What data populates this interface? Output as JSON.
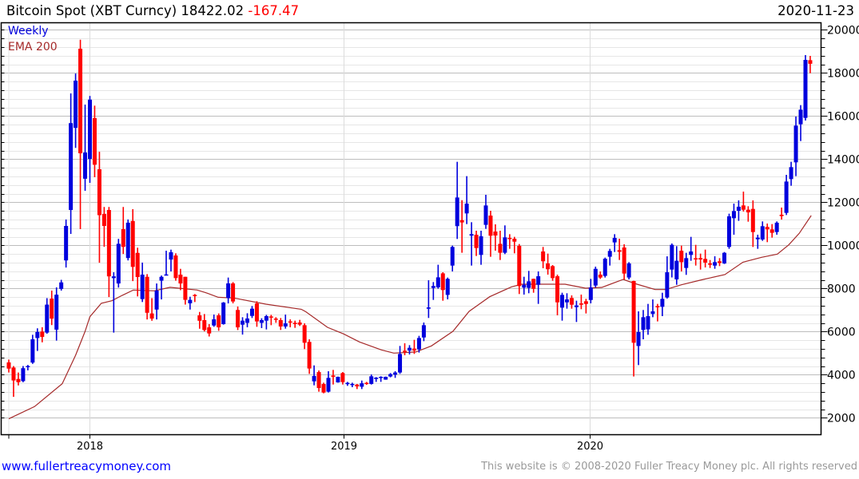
{
  "header": {
    "title": "Bitcoin Spot (XBT Curncy)",
    "last": "18422.02",
    "change": "-167.47",
    "date": "2020-11-23"
  },
  "footer": {
    "link": "www.fullertreacymoney.com",
    "copyright": "This website is © 2008-2020 Fuller Treacy Money plc. All rights reserved"
  },
  "colors": {
    "up": "#0000dd",
    "down": "#ff0000",
    "ema": "#a52a2a",
    "grid_major": "#bdbdbd",
    "grid_minor": "#e6e6e6"
  },
  "chart_data": {
    "type": "candlestick",
    "title": "Bitcoin Spot (XBT Curncy)",
    "frequency_label": "Weekly",
    "overlay_label": "EMA 200",
    "start_week": "2017-09-04",
    "ylim": [
      1500,
      20000
    ],
    "yticks": [
      2000,
      4000,
      6000,
      8000,
      10000,
      12000,
      14000,
      16000,
      18000,
      20000
    ],
    "xticks": [
      {
        "label": "2018",
        "week": 17
      },
      {
        "label": "2019",
        "week": 70.2
      },
      {
        "label": "2020",
        "week": 121.8
      }
    ],
    "grid": true,
    "ohlc": [
      [
        4570,
        4700,
        4100,
        4280
      ],
      [
        4330,
        4400,
        2970,
        3730
      ],
      [
        3800,
        4100,
        3500,
        3650
      ],
      [
        3700,
        4400,
        3650,
        4300
      ],
      [
        4350,
        4450,
        4200,
        4400
      ],
      [
        4560,
        5850,
        4500,
        5640
      ],
      [
        5700,
        6150,
        5100,
        5980
      ],
      [
        6000,
        6200,
        5500,
        5750
      ],
      [
        5950,
        7550,
        5900,
        7250
      ],
      [
        7530,
        7900,
        6300,
        6600
      ],
      [
        6090,
        8050,
        5580,
        7710
      ],
      [
        7980,
        8400,
        7900,
        8280
      ],
      [
        9300,
        11200,
        8970,
        10900
      ],
      [
        11640,
        17050,
        10530,
        15670
      ],
      [
        15450,
        17970,
        14520,
        17640
      ],
      [
        19120,
        19540,
        10750,
        14270
      ],
      [
        13090,
        16530,
        12530,
        14310
      ],
      [
        14010,
        16930,
        12900,
        16760
      ],
      [
        15900,
        16480,
        13160,
        13740
      ],
      [
        13530,
        14340,
        9190,
        11400
      ],
      [
        11460,
        11780,
        9930,
        10900
      ],
      [
        11640,
        11780,
        7600,
        8560
      ],
      [
        8480,
        8750,
        5950,
        8560
      ],
      [
        8230,
        10300,
        8040,
        10070
      ],
      [
        10750,
        11780,
        9600,
        9930
      ],
      [
        9410,
        11200,
        9300,
        11050
      ],
      [
        11130,
        11680,
        8340,
        9000
      ],
      [
        9650,
        9890,
        7630,
        8530
      ],
      [
        7505,
        9200,
        7370,
        8640
      ],
      [
        8540,
        8665,
        6560,
        6870
      ],
      [
        6840,
        7550,
        6500,
        6600
      ],
      [
        7020,
        8230,
        6560,
        7900
      ],
      [
        8360,
        8600,
        7490,
        8540
      ],
      [
        8600,
        9750,
        8600,
        8650
      ],
      [
        9340,
        9800,
        8790,
        9680
      ],
      [
        9530,
        9630,
        8360,
        8480
      ],
      [
        8640,
        8910,
        7920,
        8230
      ],
      [
        8540,
        8540,
        7250,
        7470
      ],
      [
        7310,
        7615,
        7020,
        7470
      ],
      [
        7700,
        7740,
        7370,
        7660
      ],
      [
        6750,
        6910,
        6130,
        6500
      ],
      [
        6530,
        6813,
        6010,
        6070
      ],
      [
        6196,
        6345,
        5770,
        5912
      ],
      [
        6280,
        6790,
        6220,
        6567
      ],
      [
        6750,
        6840,
        6035,
        6196
      ],
      [
        6344,
        7369,
        6320,
        7344
      ],
      [
        7555,
        8505,
        7305,
        8235
      ],
      [
        8233,
        8295,
        7308,
        7394
      ],
      [
        7000,
        7160,
        6070,
        6196
      ],
      [
        6320,
        6665,
        5860,
        6505
      ],
      [
        6405,
        6850,
        6197,
        6605
      ],
      [
        6725,
        7184,
        6628,
        7060
      ],
      [
        7305,
        7405,
        6220,
        6470
      ],
      [
        6405,
        6616,
        6160,
        6530
      ],
      [
        6505,
        6776,
        6098,
        6715
      ],
      [
        6700,
        6776,
        6295,
        6660
      ],
      [
        6600,
        6665,
        6406,
        6560
      ],
      [
        6530,
        6628,
        6073,
        6235
      ],
      [
        6235,
        6789,
        6135,
        6380
      ],
      [
        6470,
        6567,
        6197,
        6430
      ],
      [
        6405,
        6505,
        6172,
        6345
      ],
      [
        6420,
        6542,
        6258,
        6320
      ],
      [
        6295,
        6381,
        5185,
        5480
      ],
      [
        5520,
        5641,
        4035,
        4285
      ],
      [
        3690,
        4430,
        3505,
        3940
      ],
      [
        4120,
        4196,
        3210,
        3380
      ],
      [
        3565,
        3628,
        3135,
        3170
      ],
      [
        3210,
        4159,
        3172,
        3850
      ],
      [
        3960,
        4221,
        3542,
        3900
      ],
      [
        3640,
        3912,
        3628,
        3900
      ],
      [
        4075,
        4122,
        3542,
        3655
      ],
      [
        3560,
        3665,
        3480,
        3620
      ],
      [
        3520,
        3628,
        3418,
        3570
      ],
      [
        3540,
        3567,
        3332,
        3455
      ],
      [
        3440,
        3727,
        3332,
        3600
      ],
      [
        3620,
        3665,
        3530,
        3590
      ],
      [
        3570,
        4011,
        3542,
        3925
      ],
      [
        3800,
        3887,
        3665,
        3860
      ],
      [
        3850,
        3925,
        3665,
        3900
      ],
      [
        3770,
        3912,
        3764,
        3900
      ],
      [
        3915,
        4073,
        3876,
        4025
      ],
      [
        4000,
        4159,
        3851,
        4100
      ],
      [
        4100,
        5332,
        4036,
        4960
      ],
      [
        5110,
        5456,
        4900,
        5060
      ],
      [
        5120,
        5369,
        4937,
        5245
      ],
      [
        5210,
        5616,
        4962,
        5120
      ],
      [
        5170,
        5801,
        5024,
        5700
      ],
      [
        5725,
        6419,
        5554,
        6295
      ],
      [
        7060,
        8380,
        6630,
        7120
      ],
      [
        8025,
        8295,
        7468,
        8110
      ],
      [
        8050,
        9100,
        7987,
        8515
      ],
      [
        8700,
        8752,
        7430,
        7925
      ],
      [
        7700,
        8505,
        7493,
        8445
      ],
      [
        9060,
        9986,
        8789,
        9925
      ],
      [
        10890,
        13875,
        10295,
        12220
      ],
      [
        11170,
        12095,
        9655,
        11060
      ],
      [
        11480,
        13210,
        10985,
        11935
      ],
      [
        10450,
        11073,
        9060,
        10520
      ],
      [
        10490,
        10678,
        9505,
        9875
      ],
      [
        9555,
        10678,
        9097,
        10420
      ],
      [
        10950,
        12345,
        10764,
        11850
      ],
      [
        11380,
        11604,
        9468,
        10445
      ],
      [
        10640,
        10974,
        9752,
        10455
      ],
      [
        10070,
        10678,
        9320,
        9655
      ],
      [
        9655,
        10925,
        9592,
        10370
      ],
      [
        10345,
        10517,
        9838,
        10295
      ],
      [
        10305,
        10394,
        9629,
        10170
      ],
      [
        9975,
        10061,
        7740,
        8110
      ],
      [
        8035,
        8542,
        7715,
        8170
      ],
      [
        8025,
        8814,
        7777,
        8330
      ],
      [
        8445,
        8456,
        7801,
        7985
      ],
      [
        8170,
        8789,
        7283,
        8565
      ],
      [
        9715,
        9925,
        8937,
        9260
      ],
      [
        9160,
        9616,
        8641,
        8890
      ],
      [
        9035,
        9085,
        8357,
        8480
      ],
      [
        8565,
        8641,
        6752,
        7355
      ],
      [
        7110,
        7801,
        6505,
        7700
      ],
      [
        7355,
        7777,
        7061,
        7490
      ],
      [
        7555,
        7678,
        7061,
        7245
      ],
      [
        7135,
        7431,
        6443,
        7210
      ],
      [
        7305,
        7715,
        7036,
        7245
      ],
      [
        7405,
        7517,
        6838,
        7280
      ],
      [
        7465,
        8443,
        7308,
        8045
      ],
      [
        8135,
        9011,
        8048,
        8910
      ],
      [
        8640,
        8789,
        8443,
        8505
      ],
      [
        8580,
        9431,
        8505,
        9380
      ],
      [
        9470,
        9838,
        9061,
        9740
      ],
      [
        10135,
        10517,
        9690,
        10345
      ],
      [
        9775,
        10308,
        9320,
        9700
      ],
      [
        9900,
        10048,
        8419,
        8690
      ],
      [
        8505,
        9221,
        8419,
        9160
      ],
      [
        8345,
        8357,
        3915,
        5480
      ],
      [
        5330,
        6937,
        4443,
        5975
      ],
      [
        6075,
        7000,
        5640,
        6665
      ],
      [
        6100,
        7283,
        5850,
        6715
      ],
      [
        6815,
        7490,
        6665,
        6937
      ],
      [
        7180,
        7283,
        6470,
        7130
      ],
      [
        7147,
        7800,
        6715,
        7517
      ],
      [
        7580,
        9490,
        7530,
        8750
      ],
      [
        8875,
        10085,
        8510,
        10023
      ],
      [
        8420,
        9962,
        8170,
        9283
      ],
      [
        9750,
        9986,
        8790,
        9220
      ],
      [
        8950,
        9653,
        8630,
        9406
      ],
      [
        9555,
        10393,
        9283,
        9715
      ],
      [
        9400,
        10023,
        9061,
        9350
      ],
      [
        9406,
        9616,
        8875,
        9345
      ],
      [
        9370,
        9801,
        8974,
        9200
      ],
      [
        9160,
        9319,
        8949,
        9100
      ],
      [
        9060,
        9492,
        8912,
        9220
      ],
      [
        9258,
        9406,
        9036,
        9184
      ],
      [
        9160,
        9690,
        9135,
        9653
      ],
      [
        9925,
        11469,
        9838,
        11345
      ],
      [
        11258,
        11937,
        10493,
        11590
      ],
      [
        11604,
        12085,
        11135,
        11790
      ],
      [
        11850,
        12493,
        11567,
        11653
      ],
      [
        11653,
        11814,
        11097,
        11530
      ],
      [
        11690,
        12085,
        9924,
        10616
      ],
      [
        10283,
        10493,
        9838,
        10357
      ],
      [
        10270,
        11110,
        10208,
        10887
      ],
      [
        10850,
        11011,
        10147,
        10740
      ],
      [
        10740,
        10986,
        10357,
        10580
      ],
      [
        10616,
        11110,
        10493,
        11050
      ],
      [
        11420,
        11752,
        11196,
        11357
      ],
      [
        11505,
        13270,
        11406,
        12960
      ],
      [
        13073,
        13875,
        12764,
        13628
      ],
      [
        13850,
        15974,
        13209,
        15555
      ],
      [
        15616,
        16505,
        14838,
        16295
      ],
      [
        15912,
        18826,
        15789,
        18604
      ],
      [
        18590,
        18789,
        17986,
        18422
      ]
    ],
    "ema200": [
      [
        0,
        1950
      ],
      [
        5.4,
        2520
      ],
      [
        11.2,
        3580
      ],
      [
        14,
        4900
      ],
      [
        16,
        6010
      ],
      [
        17,
        6690
      ],
      [
        19.4,
        7310
      ],
      [
        21.6,
        7430
      ],
      [
        23.8,
        7680
      ],
      [
        26.1,
        7925
      ],
      [
        30.5,
        7890
      ],
      [
        33.8,
        8050
      ],
      [
        39.5,
        7925
      ],
      [
        41.7,
        7775
      ],
      [
        43.9,
        7590
      ],
      [
        47.2,
        7555
      ],
      [
        53.9,
        7270
      ],
      [
        61.3,
        7035
      ],
      [
        62.3,
        6915
      ],
      [
        66.8,
        6195
      ],
      [
        70.2,
        5890
      ],
      [
        73.5,
        5517
      ],
      [
        78.1,
        5147
      ],
      [
        80.7,
        5000
      ],
      [
        85.3,
        5050
      ],
      [
        88.6,
        5332
      ],
      [
        93.1,
        6010
      ],
      [
        96.5,
        6937
      ],
      [
        100.8,
        7615
      ],
      [
        105.4,
        8073
      ],
      [
        107.5,
        8196
      ],
      [
        116.6,
        8196
      ],
      [
        120.9,
        8010
      ],
      [
        124.3,
        8048
      ],
      [
        128.8,
        8420
      ],
      [
        131.7,
        8196
      ],
      [
        135.5,
        7950
      ],
      [
        137.7,
        7950
      ],
      [
        141,
        8170
      ],
      [
        145.6,
        8418
      ],
      [
        150.1,
        8640
      ],
      [
        153.9,
        9220
      ],
      [
        157.8,
        9443
      ],
      [
        161.1,
        9591
      ],
      [
        163.5,
        10023
      ],
      [
        165.7,
        10554
      ],
      [
        168.2,
        11382
      ]
    ]
  }
}
